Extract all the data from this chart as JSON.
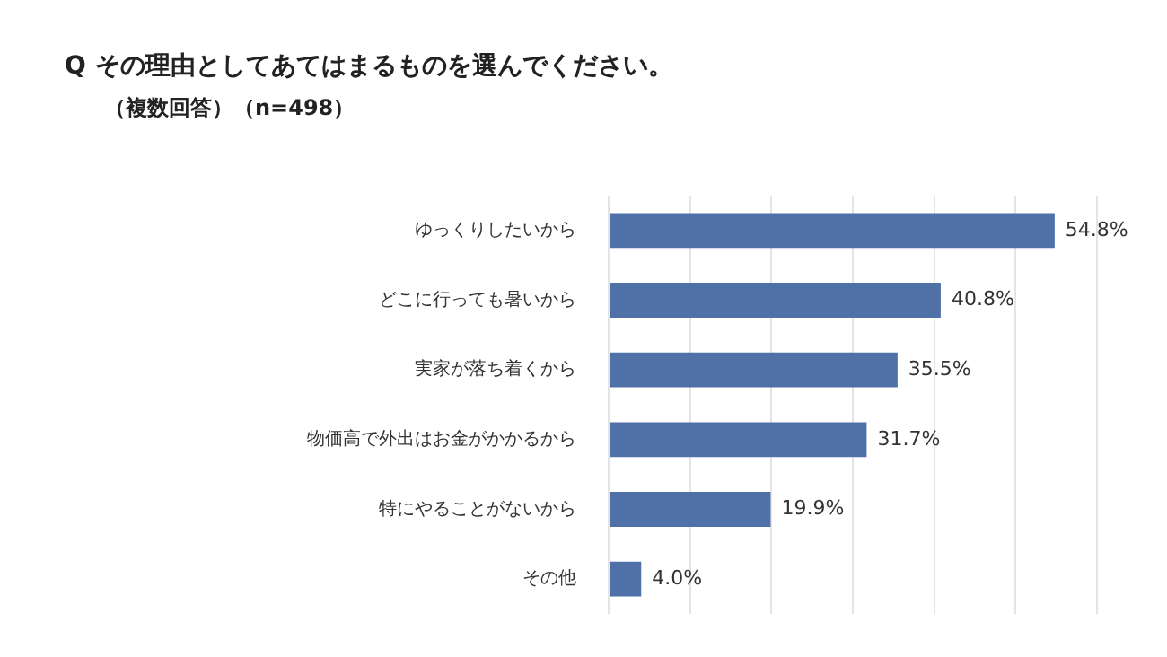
{
  "chart_data": {
    "type": "bar",
    "orientation": "horizontal",
    "title": "Q その理由としてあてはまるものを選んでください。",
    "subtitle": "（複数回答）（n=498）",
    "categories": [
      "ゆっくりしたいから",
      "どこに行っても暑いから",
      "実家が落ち着くから",
      "物価高で外出はお金がかかるから",
      "特にやることがないから",
      "その他"
    ],
    "values": [
      54.8,
      40.8,
      35.5,
      31.7,
      19.9,
      4.0
    ],
    "value_labels": [
      "54.8%",
      "40.8%",
      "35.5%",
      "31.7%",
      "19.9%",
      "4.0%"
    ],
    "color": "#4f71a8",
    "xlim": [
      0,
      60
    ],
    "xticks": [
      {
        "value": 0,
        "label": null
      },
      {
        "value": 10,
        "label": null
      },
      {
        "value": 20,
        "label": null
      },
      {
        "value": 30,
        "label": null
      },
      {
        "value": 40,
        "label": null
      },
      {
        "value": 50,
        "label": null
      },
      {
        "value": 60,
        "label": null
      }
    ],
    "grid": "x",
    "tick_labels": "y"
  }
}
